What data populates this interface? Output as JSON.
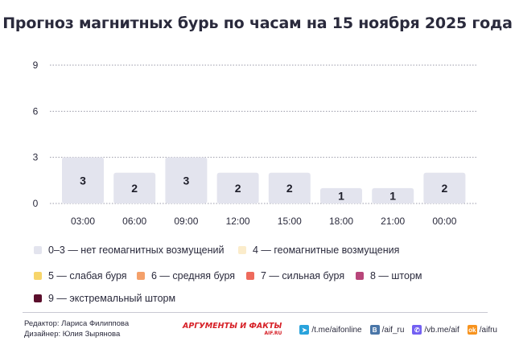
{
  "title": "Прогноз магнитных бурь по часам на 15 ноября 2025 года",
  "chart_data": {
    "type": "bar",
    "categories": [
      "03:00",
      "06:00",
      "09:00",
      "12:00",
      "15:00",
      "18:00",
      "21:00",
      "00:00"
    ],
    "values": [
      3,
      2,
      3,
      2,
      2,
      1,
      1,
      2
    ],
    "yticks": [
      0,
      3,
      6,
      9
    ],
    "ylim": [
      0,
      9
    ],
    "grid": true,
    "bar_color": "#e3e4ee",
    "grid_color": "#9a9aa8"
  },
  "legend": [
    {
      "label": "0–3 — нет геомагнитных возмущений",
      "color": "#e3e4ee"
    },
    {
      "label": "4 — геомагнитные возмущения",
      "color": "#fbeccb"
    },
    {
      "label": "5 — слабая буря",
      "color": "#f7d56a"
    },
    {
      "label": "6 — средняя буря",
      "color": "#f4a06a"
    },
    {
      "label": "7 — сильная буря",
      "color": "#ee6a5c"
    },
    {
      "label": "8 — шторм",
      "color": "#b8467a"
    },
    {
      "label": "9 — экстремальный шторм",
      "color": "#5b0f2c"
    }
  ],
  "credits": {
    "editor": "Редактор: Лариса Филиппова",
    "designer": "Дизайнер: Юлия Зырянова"
  },
  "footer": {
    "logo_text": "АРГУМЕНТЫ И ФАКТЫ",
    "logo_sub": "AIF.RU",
    "links": [
      {
        "icon": "telegram-icon",
        "text": "/t.me/aifonline",
        "color": "#2aa3dc"
      },
      {
        "icon": "vk-icon",
        "text": "/aif_ru",
        "color": "#4a76a8"
      },
      {
        "icon": "viber-icon",
        "text": "/vb.me/aif",
        "color": "#7360f2"
      },
      {
        "icon": "ok-icon",
        "text": "/aifru",
        "color": "#f7931e"
      }
    ]
  }
}
